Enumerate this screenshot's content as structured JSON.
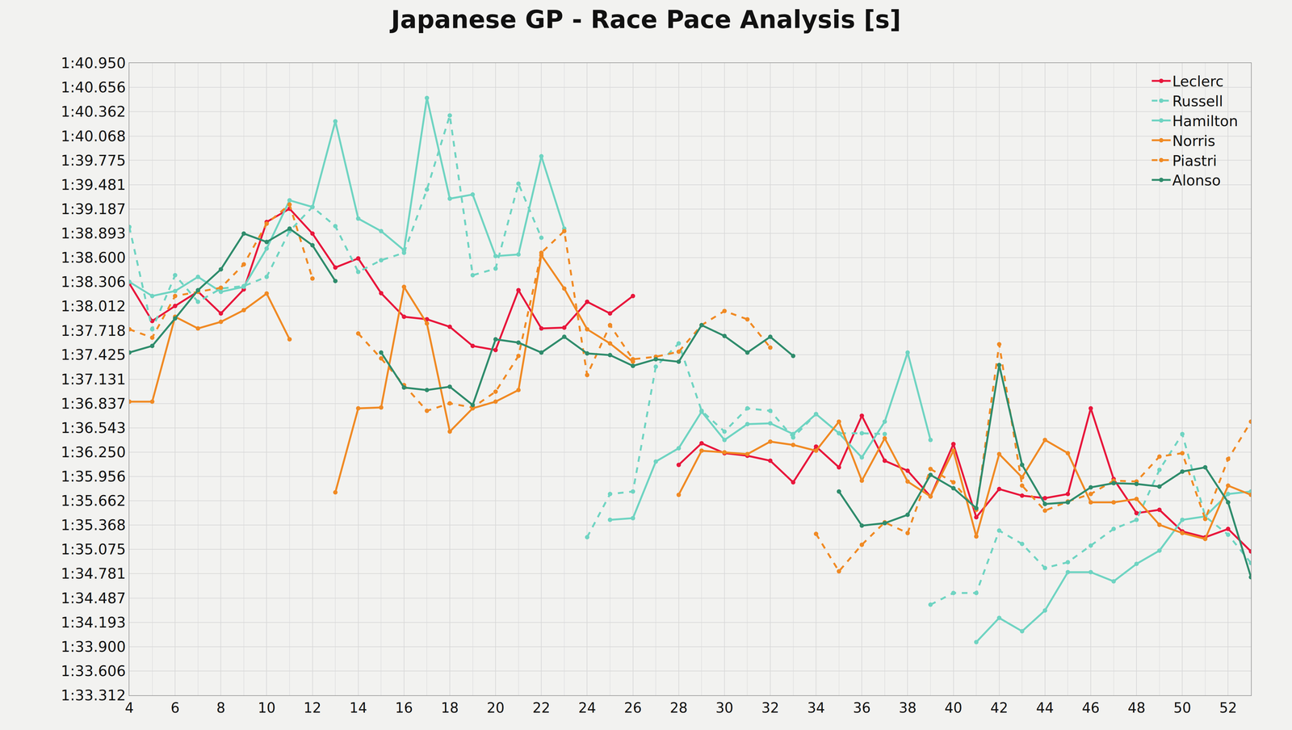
{
  "chart_data": {
    "type": "line",
    "title": "Japanese GP - Race Pace Analysis [s]",
    "x": [
      4,
      5,
      6,
      7,
      8,
      9,
      10,
      11,
      12,
      13,
      14,
      15,
      16,
      17,
      18,
      19,
      20,
      21,
      22,
      23,
      24,
      25,
      26,
      27,
      28,
      29,
      30,
      31,
      32,
      33,
      34,
      35,
      36,
      37,
      38,
      39,
      40,
      41,
      42,
      43,
      44,
      45,
      46,
      47,
      48,
      49,
      50,
      51,
      52,
      53
    ],
    "xlim": [
      4,
      53
    ],
    "xticks": [
      4,
      6,
      8,
      10,
      12,
      14,
      16,
      18,
      20,
      22,
      24,
      26,
      28,
      30,
      32,
      34,
      36,
      38,
      40,
      42,
      44,
      46,
      48,
      50,
      52
    ],
    "ylim": [
      93.312,
      100.95
    ],
    "yticks": [
      {
        "value": 93.312,
        "label": "1:33.312"
      },
      {
        "value": 93.606,
        "label": "1:33.606"
      },
      {
        "value": 93.9,
        "label": "1:33.900"
      },
      {
        "value": 94.193,
        "label": "1:34.193"
      },
      {
        "value": 94.487,
        "label": "1:34.487"
      },
      {
        "value": 94.781,
        "label": "1:34.781"
      },
      {
        "value": 95.075,
        "label": "1:35.075"
      },
      {
        "value": 95.368,
        "label": "1:35.368"
      },
      {
        "value": 95.662,
        "label": "1:35.662"
      },
      {
        "value": 95.956,
        "label": "1:35.956"
      },
      {
        "value": 96.25,
        "label": "1:36.250"
      },
      {
        "value": 96.543,
        "label": "1:36.543"
      },
      {
        "value": 96.837,
        "label": "1:36.837"
      },
      {
        "value": 97.131,
        "label": "1:37.131"
      },
      {
        "value": 97.425,
        "label": "1:37.425"
      },
      {
        "value": 97.718,
        "label": "1:37.718"
      },
      {
        "value": 98.012,
        "label": "1:38.012"
      },
      {
        "value": 98.306,
        "label": "1:38.306"
      },
      {
        "value": 98.6,
        "label": "1:38.600"
      },
      {
        "value": 98.893,
        "label": "1:38.893"
      },
      {
        "value": 99.187,
        "label": "1:39.187"
      },
      {
        "value": 99.481,
        "label": "1:39.481"
      },
      {
        "value": 99.775,
        "label": "1:39.775"
      },
      {
        "value": 100.068,
        "label": "1:40.068"
      },
      {
        "value": 100.362,
        "label": "1:40.362"
      },
      {
        "value": 100.656,
        "label": "1:40.656"
      },
      {
        "value": 100.95,
        "label": "1:40.950"
      }
    ],
    "grid": true,
    "legend": "top right",
    "series": [
      {
        "name": "Leclerc",
        "color": "#e8173c",
        "line_style": "solid",
        "marker": "circle",
        "values": [
          98.287,
          97.834,
          98.016,
          98.19,
          97.925,
          98.216,
          99.03,
          99.19,
          98.89,
          98.48,
          98.59,
          98.17,
          97.885,
          97.855,
          97.764,
          97.533,
          97.483,
          98.206,
          97.744,
          97.754,
          98.066,
          97.925,
          98.136,
          null,
          96.096,
          96.357,
          96.237,
          96.206,
          96.146,
          95.885,
          96.317,
          96.066,
          96.689,
          96.146,
          96.025,
          95.714,
          96.347,
          95.463,
          95.804,
          95.724,
          95.694,
          95.744,
          96.779,
          95.925,
          95.513,
          95.553,
          95.292,
          95.221,
          95.322,
          95.05
        ]
      },
      {
        "name": "Russell",
        "color": "#6fd4c2",
        "line_style": "dashed",
        "marker": "circle",
        "values": [
          98.97,
          97.734,
          98.387,
          98.066,
          98.226,
          98.256,
          98.367,
          98.92,
          99.211,
          98.98,
          98.427,
          98.568,
          98.658,
          99.422,
          100.317,
          98.387,
          98.467,
          99.493,
          98.84,
          null,
          95.222,
          95.744,
          95.774,
          97.282,
          97.563,
          96.749,
          96.498,
          96.779,
          96.749,
          96.427,
          96.709,
          96.478,
          96.478,
          96.468,
          null,
          94.407,
          94.548,
          94.548,
          95.302,
          95.141,
          94.85,
          94.92,
          95.121,
          95.322,
          95.432,
          96.036,
          96.468,
          95.473,
          95.252,
          94.91
        ]
      },
      {
        "name": "Hamilton",
        "color": "#6fd4c2",
        "line_style": "solid",
        "marker": "circle",
        "values": [
          98.307,
          98.136,
          98.196,
          98.367,
          98.186,
          98.247,
          98.709,
          99.292,
          99.211,
          100.246,
          99.071,
          98.92,
          98.689,
          100.528,
          99.312,
          99.362,
          98.618,
          98.638,
          99.824,
          98.95,
          null,
          95.432,
          95.452,
          96.136,
          96.297,
          96.739,
          96.397,
          96.588,
          96.598,
          96.468,
          96.709,
          96.478,
          96.186,
          96.618,
          97.453,
          96.397,
          null,
          93.955,
          94.247,
          94.086,
          94.337,
          94.8,
          94.8,
          94.689,
          94.9,
          95.06,
          95.432,
          95.473,
          95.744,
          95.774
        ]
      },
      {
        "name": "Norris",
        "color": "#f08a24",
        "line_style": "solid",
        "marker": "circle",
        "values": [
          96.86,
          96.86,
          97.885,
          97.744,
          97.824,
          97.965,
          98.166,
          97.613,
          null,
          95.764,
          96.779,
          96.789,
          98.246,
          97.804,
          96.498,
          96.779,
          96.86,
          97.0,
          98.628,
          98.226,
          97.734,
          97.563,
          97.342,
          null,
          95.734,
          96.267,
          96.247,
          96.226,
          96.377,
          96.337,
          96.267,
          96.618,
          95.905,
          96.417,
          95.895,
          95.714,
          96.267,
          95.231,
          96.226,
          95.945,
          96.397,
          96.237,
          95.643,
          95.643,
          95.684,
          95.372,
          95.272,
          95.201,
          95.845,
          95.734
        ]
      },
      {
        "name": "Piastri",
        "color": "#f08a24",
        "line_style": "dashed",
        "marker": "circle",
        "values": [
          97.734,
          97.633,
          98.136,
          98.186,
          98.236,
          98.518,
          99.01,
          99.241,
          98.347,
          null,
          97.683,
          97.382,
          97.06,
          96.749,
          96.839,
          96.789,
          96.98,
          97.412,
          98.658,
          98.92,
          97.181,
          97.784,
          97.372,
          97.402,
          97.463,
          97.784,
          97.955,
          97.854,
          97.513,
          null,
          95.262,
          94.81,
          95.131,
          95.402,
          95.272,
          96.046,
          95.885,
          95.553,
          97.553,
          95.845,
          95.543,
          95.654,
          95.744,
          95.905,
          95.895,
          96.196,
          96.237,
          95.442,
          96.166,
          96.618
        ]
      },
      {
        "name": "Alonso",
        "color": "#2f8c6c",
        "line_style": "solid",
        "marker": "circle",
        "values": [
          97.453,
          97.533,
          97.865,
          98.206,
          98.458,
          98.89,
          98.789,
          98.95,
          98.749,
          98.317,
          null,
          97.453,
          97.03,
          97.0,
          97.04,
          96.819,
          97.613,
          97.573,
          97.453,
          97.643,
          97.442,
          97.422,
          97.292,
          97.372,
          97.342,
          97.784,
          97.653,
          97.453,
          97.643,
          97.412,
          null,
          95.774,
          95.362,
          95.392,
          95.493,
          95.975,
          95.814,
          95.573,
          97.302,
          96.096,
          95.623,
          95.643,
          95.824,
          95.875,
          95.865,
          95.834,
          96.015,
          96.066,
          95.643,
          94.739
        ]
      }
    ]
  }
}
